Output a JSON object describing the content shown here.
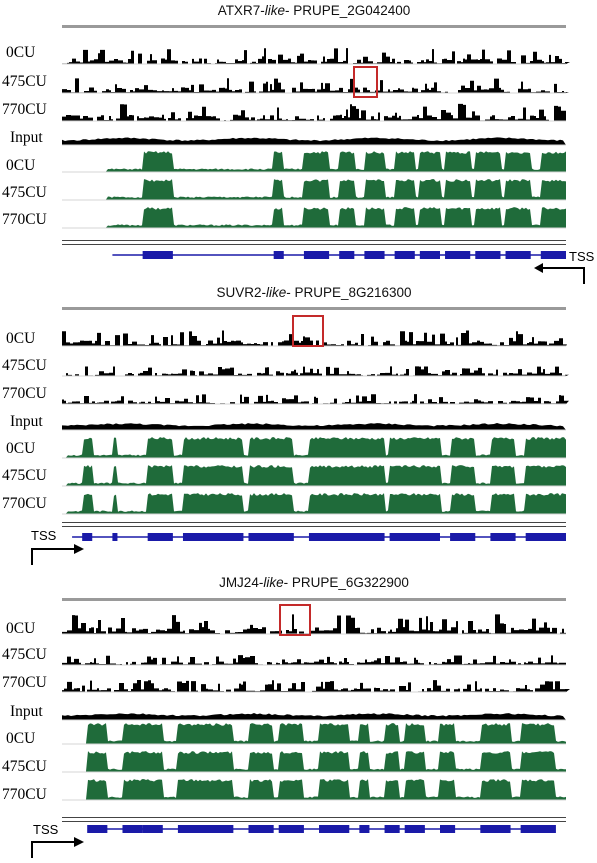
{
  "panels": [
    {
      "gene_prefix": "ATXR7-",
      "gene_like": "like",
      "gene_id": "- PRUPE_2G042400",
      "track_labels": [
        "0CU",
        "475CU",
        "770CU",
        "Input",
        "0CU",
        "475CU",
        "770CU"
      ],
      "tss_label": "TSS",
      "tss_direction": "reverse"
    },
    {
      "gene_prefix": "SUVR2-",
      "gene_like": "like",
      "gene_id": "- PRUPE_8G216300",
      "track_labels": [
        "0CU",
        "475CU",
        "770CU",
        "Input",
        "0CU",
        "475CU",
        "770CU"
      ],
      "tss_label": "TSS",
      "tss_direction": "forward"
    },
    {
      "gene_prefix": "JMJ24-",
      "gene_like": "like",
      "gene_id": "- PRUPE_6G322900",
      "track_labels": [
        "0CU",
        "475CU",
        "770CU",
        "Input",
        "0CU",
        "475CU",
        "770CU"
      ],
      "tss_label": "TSS",
      "tss_direction": "forward"
    }
  ],
  "colors": {
    "chip_track": "#000000",
    "rna_track": "#1f6b3a",
    "gene_model": "#1a1aa8",
    "highlight_box": "#c42a2a"
  }
}
